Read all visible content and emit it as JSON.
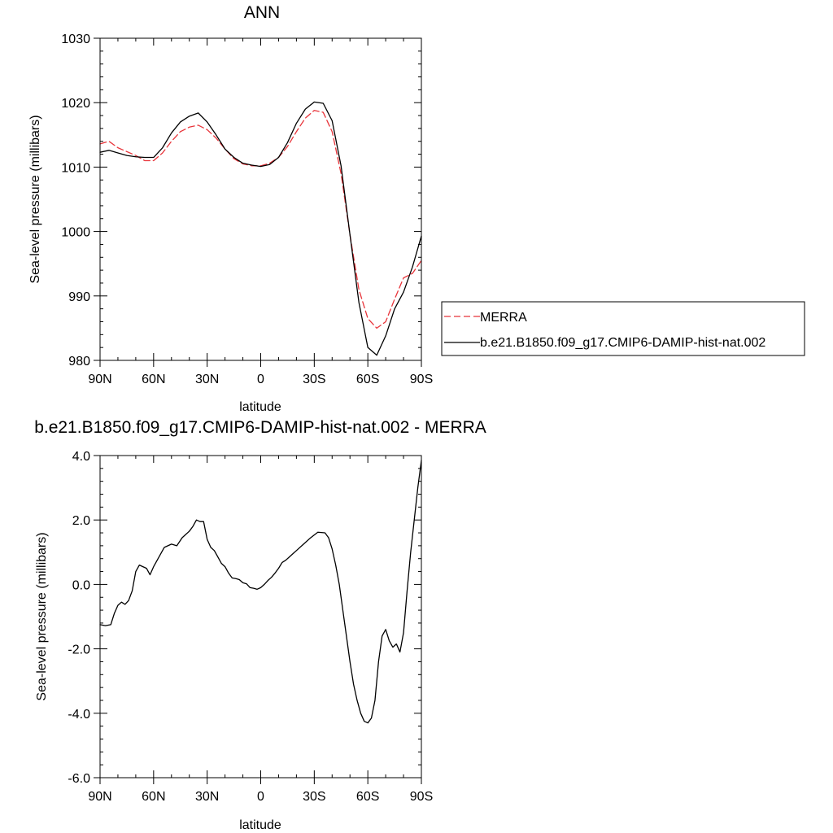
{
  "colors": {
    "model": "#000000",
    "obs": "#e8343a",
    "frame": "#000000",
    "background": "#ffffff"
  },
  "chart_data": [
    {
      "type": "line",
      "title": "ANN",
      "xlabel": "latitude",
      "ylabel": "Sea-level pressure (millibars)",
      "xlim": [
        90,
        -90
      ],
      "ylim": [
        980,
        1030
      ],
      "x_ticks": [
        {
          "value": 90,
          "label": "90N"
        },
        {
          "value": 60,
          "label": "60N"
        },
        {
          "value": 30,
          "label": "30N"
        },
        {
          "value": 0,
          "label": "0"
        },
        {
          "value": -30,
          "label": "30S"
        },
        {
          "value": -60,
          "label": "60S"
        },
        {
          "value": -90,
          "label": "90S"
        }
      ],
      "y_ticks": [
        {
          "value": 980,
          "label": "980"
        },
        {
          "value": 990,
          "label": "990"
        },
        {
          "value": 1000,
          "label": "1000"
        },
        {
          "value": 1010,
          "label": "1010"
        },
        {
          "value": 1020,
          "label": "1020"
        },
        {
          "value": 1030,
          "label": "1030"
        }
      ],
      "grid": false,
      "legend_position": "outside-right",
      "series": [
        {
          "name": "MERRA",
          "style": "dashed",
          "color": "#e8343a",
          "x": [
            90,
            85,
            80,
            75,
            70,
            65,
            60,
            55,
            50,
            45,
            40,
            35,
            30,
            25,
            20,
            15,
            10,
            5,
            0,
            -5,
            -10,
            -15,
            -20,
            -25,
            -30,
            -35,
            -40,
            -45,
            -50,
            -55,
            -60,
            -65,
            -70,
            -75,
            -80,
            -85,
            -90
          ],
          "y": [
            1013.6,
            1014.0,
            1013.0,
            1012.4,
            1011.8,
            1011.0,
            1011.0,
            1012.2,
            1014.0,
            1015.5,
            1016.2,
            1016.5,
            1015.8,
            1014.5,
            1012.8,
            1011.3,
            1010.5,
            1010.2,
            1010.2,
            1010.6,
            1011.5,
            1013.2,
            1015.5,
            1017.6,
            1018.8,
            1018.5,
            1015.5,
            1009.0,
            999.5,
            991.0,
            986.5,
            985.0,
            986.0,
            989.5,
            992.8,
            993.5,
            995.5
          ]
        },
        {
          "name": "b.e21.B1850.f09_g17.CMIP6-DAMIP-hist-nat.002",
          "style": "solid",
          "color": "#000000",
          "x": [
            90,
            85,
            80,
            75,
            70,
            65,
            60,
            55,
            50,
            45,
            40,
            35,
            30,
            25,
            20,
            15,
            10,
            5,
            0,
            -5,
            -10,
            -15,
            -20,
            -25,
            -30,
            -35,
            -40,
            -45,
            -50,
            -55,
            -60,
            -65,
            -70,
            -75,
            -80,
            -85,
            -90
          ],
          "y": [
            1012.3,
            1012.6,
            1012.2,
            1011.8,
            1011.6,
            1011.5,
            1011.5,
            1013.0,
            1015.3,
            1017.0,
            1017.9,
            1018.4,
            1017.0,
            1015.0,
            1012.8,
            1011.5,
            1010.6,
            1010.3,
            1010.1,
            1010.4,
            1011.5,
            1013.8,
            1016.8,
            1019.0,
            1020.1,
            1019.9,
            1017.2,
            1010.2,
            999.5,
            989.0,
            982.0,
            980.8,
            983.8,
            988.0,
            990.6,
            994.5,
            999.3
          ]
        }
      ]
    },
    {
      "type": "line",
      "title": "b.e21.B1850.f09_g17.CMIP6-DAMIP-hist-nat.002 - MERRA",
      "xlabel": "latitude",
      "ylabel": "Sea-level pressure (millibars)",
      "xlim": [
        90,
        -90
      ],
      "ylim": [
        -6,
        4
      ],
      "x_ticks": [
        {
          "value": 90,
          "label": "90N"
        },
        {
          "value": 60,
          "label": "60N"
        },
        {
          "value": 30,
          "label": "30N"
        },
        {
          "value": 0,
          "label": "0"
        },
        {
          "value": -30,
          "label": "30S"
        },
        {
          "value": -60,
          "label": "60S"
        },
        {
          "value": -90,
          "label": "90S"
        }
      ],
      "y_ticks": [
        {
          "value": -6,
          "label": "-6.0"
        },
        {
          "value": -4,
          "label": "-4.0"
        },
        {
          "value": -2,
          "label": "-2.0"
        },
        {
          "value": 0,
          "label": "0.0"
        },
        {
          "value": 2,
          "label": "2.0"
        },
        {
          "value": 4,
          "label": "4.0"
        }
      ],
      "grid": false,
      "series": [
        {
          "style": "solid",
          "color": "#000000",
          "x": [
            90,
            87,
            84,
            82,
            80,
            78,
            76,
            74,
            72,
            70,
            68,
            66,
            64,
            62,
            60,
            57,
            54,
            50,
            47,
            44,
            42,
            40,
            38,
            36,
            34,
            32,
            30,
            28,
            26,
            24,
            22,
            20,
            18,
            16,
            14,
            12,
            10,
            8,
            6,
            4,
            2,
            0,
            -2,
            -4,
            -6,
            -8,
            -10,
            -12,
            -14,
            -16,
            -18,
            -20,
            -24,
            -28,
            -32,
            -36,
            -38,
            -40,
            -42,
            -44,
            -46,
            -48,
            -50,
            -52,
            -54,
            -56,
            -58,
            -60,
            -62,
            -64,
            -65,
            -66,
            -68,
            -70,
            -72,
            -74,
            -76,
            -78,
            -80,
            -82,
            -84,
            -86,
            -88,
            -90
          ],
          "y": [
            -1.25,
            -1.28,
            -1.25,
            -0.9,
            -0.65,
            -0.55,
            -0.62,
            -0.5,
            -0.2,
            0.4,
            0.6,
            0.55,
            0.5,
            0.3,
            0.55,
            0.85,
            1.15,
            1.25,
            1.2,
            1.45,
            1.55,
            1.65,
            1.8,
            2.0,
            1.95,
            1.95,
            1.4,
            1.15,
            1.05,
            0.85,
            0.65,
            0.55,
            0.35,
            0.2,
            0.18,
            0.15,
            0.05,
            0.02,
            -0.1,
            -0.12,
            -0.15,
            -0.1,
            0.0,
            0.12,
            0.22,
            0.35,
            0.5,
            0.68,
            0.75,
            0.85,
            0.95,
            1.05,
            1.25,
            1.45,
            1.62,
            1.6,
            1.45,
            1.1,
            0.6,
            0.0,
            -0.8,
            -1.6,
            -2.4,
            -3.1,
            -3.6,
            -4.0,
            -4.25,
            -4.3,
            -4.15,
            -3.6,
            -3.0,
            -2.4,
            -1.6,
            -1.4,
            -1.75,
            -1.95,
            -1.85,
            -2.1,
            -1.5,
            -0.2,
            1.0,
            2.0,
            3.0,
            3.85
          ]
        }
      ]
    }
  ]
}
